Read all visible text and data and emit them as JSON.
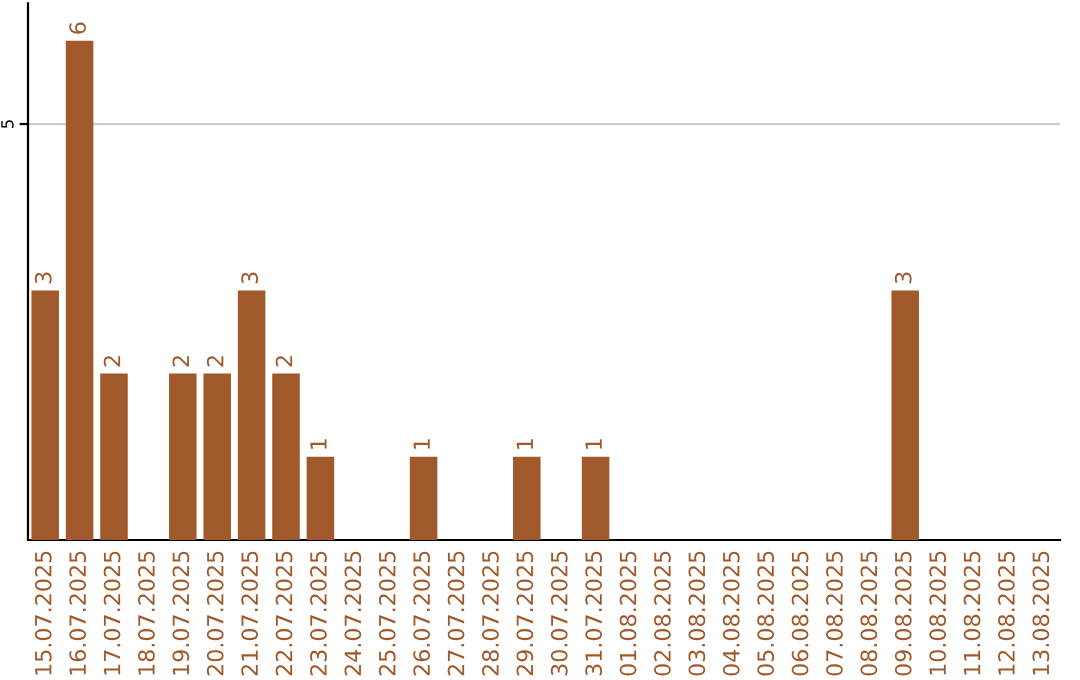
{
  "chart_data": {
    "type": "bar",
    "categories": [
      "15.07.2025",
      "16.07.2025",
      "17.07.2025",
      "18.07.2025",
      "19.07.2025",
      "20.07.2025",
      "21.07.2025",
      "22.07.2025",
      "23.07.2025",
      "24.07.2025",
      "25.07.2025",
      "26.07.2025",
      "27.07.2025",
      "28.07.2025",
      "29.07.2025",
      "30.07.2025",
      "31.07.2025",
      "01.08.2025",
      "02.08.2025",
      "03.08.2025",
      "04.08.2025",
      "05.08.2025",
      "06.08.2025",
      "07.08.2025",
      "08.08.2025",
      "09.08.2025",
      "10.08.2025",
      "11.08.2025",
      "12.08.2025",
      "13.08.2025"
    ],
    "values": [
      3,
      6,
      2,
      0,
      2,
      2,
      3,
      2,
      1,
      0,
      0,
      1,
      0,
      0,
      1,
      0,
      1,
      0,
      0,
      0,
      0,
      0,
      0,
      0,
      0,
      3,
      0,
      0,
      0,
      0
    ],
    "value_labels": [
      "3",
      "6",
      "2",
      null,
      "2",
      "2",
      "3",
      "2",
      "1",
      null,
      null,
      "1",
      null,
      null,
      "1",
      null,
      "1",
      null,
      null,
      null,
      null,
      null,
      null,
      null,
      null,
      "3",
      null,
      null,
      null,
      null
    ],
    "color": "#a0592a",
    "ylim": [
      0,
      6.45
    ],
    "yticks": [
      5
    ],
    "grid": "y"
  }
}
